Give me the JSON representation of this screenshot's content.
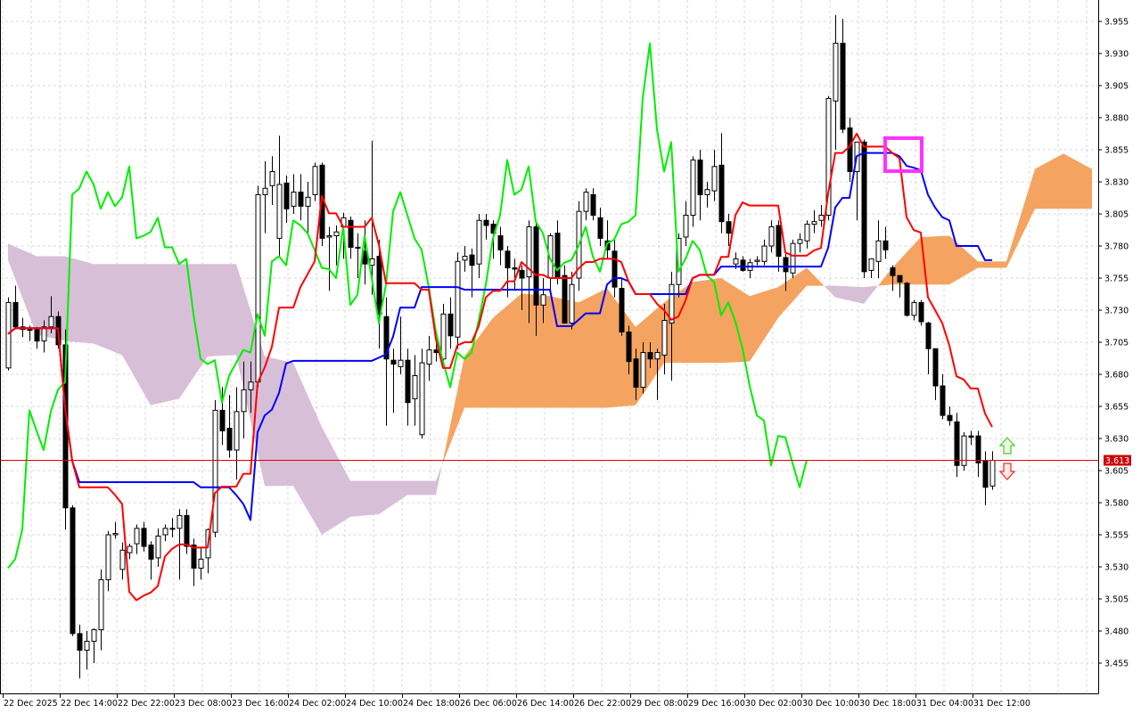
{
  "chart_data": {
    "type": "candlestick",
    "title": "",
    "xlabel": "",
    "ylabel": "",
    "ylim": [
      3.4314,
      3.9717
    ],
    "grid": true,
    "x_tick_labels": [
      "22 Dec 2025",
      "22 Dec 14:00",
      "22 Dec 22:00",
      "23 Dec 08:00",
      "23 Dec 16:00",
      "24 Dec 02:00",
      "24 Dec 10:00",
      "24 Dec 18:00",
      "26 Dec 06:00",
      "26 Dec 14:00",
      "26 Dec 22:00",
      "29 Dec 08:00",
      "29 Dec 16:00",
      "30 Dec 02:00",
      "30 Dec 10:00",
      "30 Dec 18:00",
      "31 Dec 04:00",
      "31 Dec 12:00"
    ],
    "y_ticks": [
      3.955,
      3.93,
      3.905,
      3.88,
      3.855,
      3.83,
      3.805,
      3.78,
      3.755,
      3.73,
      3.705,
      3.68,
      3.655,
      3.63,
      3.605,
      3.58,
      3.555,
      3.53,
      3.505,
      3.48,
      3.455
    ],
    "current_price": 3.613,
    "current_price_label": "3.613",
    "candles_ohlc": [
      [
        3.685,
        3.74,
        3.683,
        3.736
      ],
      [
        3.736,
        3.749,
        3.715,
        3.717
      ],
      [
        3.717,
        3.724,
        3.709,
        3.715
      ],
      [
        3.715,
        3.718,
        3.706,
        3.715
      ],
      [
        3.715,
        3.717,
        3.7,
        3.706
      ],
      [
        3.706,
        3.722,
        3.697,
        3.717
      ],
      [
        3.717,
        3.741,
        3.712,
        3.725
      ],
      [
        3.725,
        3.729,
        3.7,
        3.703
      ],
      [
        3.703,
        3.715,
        3.559,
        3.576
      ],
      [
        3.576,
        3.578,
        3.476,
        3.478
      ],
      [
        3.478,
        3.485,
        3.443,
        3.465
      ],
      [
        3.465,
        3.48,
        3.45,
        3.472
      ],
      [
        3.472,
        3.482,
        3.455,
        3.481
      ],
      [
        3.481,
        3.528,
        3.465,
        3.52
      ],
      [
        3.52,
        3.558,
        3.511,
        3.555
      ],
      [
        3.555,
        3.565,
        3.552,
        3.556
      ],
      [
        3.528,
        3.549,
        3.52,
        3.543
      ],
      [
        3.541,
        3.548,
        3.536,
        3.546
      ],
      [
        3.548,
        3.563,
        3.54,
        3.56
      ],
      [
        3.56,
        3.565,
        3.542,
        3.546
      ],
      [
        3.547,
        3.55,
        3.52,
        3.536
      ],
      [
        3.537,
        3.56,
        3.53,
        3.554
      ],
      [
        3.555,
        3.563,
        3.55,
        3.56
      ],
      [
        3.56,
        3.568,
        3.553,
        3.56
      ],
      [
        3.56,
        3.575,
        3.52,
        3.57
      ],
      [
        3.57,
        3.575,
        3.54,
        3.546
      ],
      [
        3.547,
        3.552,
        3.515,
        3.529
      ],
      [
        3.529,
        3.545,
        3.52,
        3.536
      ],
      [
        3.537,
        3.56,
        3.525,
        3.559
      ],
      [
        3.557,
        3.66,
        3.553,
        3.652
      ],
      [
        3.652,
        3.67,
        3.625,
        3.636
      ],
      [
        3.638,
        3.664,
        3.615,
        3.621
      ],
      [
        3.621,
        3.67,
        3.598,
        3.651
      ],
      [
        3.651,
        3.69,
        3.63,
        3.668
      ],
      [
        3.668,
        3.69,
        3.65,
        3.674
      ],
      [
        3.674,
        3.827,
        3.67,
        3.82
      ],
      [
        3.82,
        3.846,
        3.79,
        3.825
      ],
      [
        3.827,
        3.85,
        3.812,
        3.838
      ],
      [
        3.786,
        3.866,
        3.772,
        3.828
      ],
      [
        3.829,
        3.835,
        3.798,
        3.809
      ],
      [
        3.811,
        3.836,
        3.805,
        3.822
      ],
      [
        3.822,
        3.836,
        3.8,
        3.811
      ],
      [
        3.811,
        3.83,
        3.79,
        3.818
      ],
      [
        3.82,
        3.845,
        3.815,
        3.842
      ],
      [
        3.843,
        3.845,
        3.78,
        3.786
      ],
      [
        3.787,
        3.795,
        3.745,
        3.788
      ],
      [
        3.788,
        3.796,
        3.765,
        3.791
      ],
      [
        3.795,
        3.806,
        3.77,
        3.802
      ],
      [
        3.8,
        3.803,
        3.77,
        3.779
      ],
      [
        3.779,
        3.79,
        3.755,
        3.779
      ],
      [
        3.776,
        3.8,
        3.75,
        3.766
      ],
      [
        3.765,
        3.862,
        3.742,
        3.77
      ],
      [
        3.772,
        3.785,
        3.7,
        3.727
      ],
      [
        3.725,
        3.74,
        3.64,
        3.692
      ],
      [
        3.691,
        3.7,
        3.65,
        3.688
      ],
      [
        3.686,
        3.725,
        3.68,
        3.691
      ],
      [
        3.691,
        3.7,
        3.64,
        3.658
      ],
      [
        3.661,
        3.695,
        3.64,
        3.679
      ],
      [
        3.633,
        3.7,
        3.63,
        3.689
      ],
      [
        3.688,
        3.71,
        3.675,
        3.699
      ],
      [
        3.699,
        3.705,
        3.69,
        3.697
      ],
      [
        3.692,
        3.735,
        3.685,
        3.727
      ],
      [
        3.727,
        3.74,
        3.7,
        3.71
      ],
      [
        3.709,
        3.775,
        3.7,
        3.768
      ],
      [
        3.769,
        3.78,
        3.76,
        3.772
      ],
      [
        3.773,
        3.778,
        3.74,
        3.765
      ],
      [
        3.766,
        3.805,
        3.755,
        3.8
      ],
      [
        3.8,
        3.805,
        3.785,
        3.796
      ],
      [
        3.797,
        3.8,
        3.77,
        3.79
      ],
      [
        3.788,
        3.795,
        3.765,
        3.777
      ],
      [
        3.776,
        3.78,
        3.74,
        3.763
      ],
      [
        3.763,
        3.77,
        3.745,
        3.762
      ],
      [
        3.761,
        3.765,
        3.73,
        3.755
      ],
      [
        3.756,
        3.8,
        3.72,
        3.795
      ],
      [
        3.795,
        3.798,
        3.71,
        3.734
      ],
      [
        3.734,
        3.755,
        3.72,
        3.742
      ],
      [
        3.755,
        3.79,
        3.745,
        3.788
      ],
      [
        3.79,
        3.8,
        3.75,
        3.755
      ],
      [
        3.757,
        3.765,
        3.72,
        3.72
      ],
      [
        3.72,
        3.76,
        3.715,
        3.75
      ],
      [
        3.755,
        3.815,
        3.745,
        3.807
      ],
      [
        3.807,
        3.825,
        3.8,
        3.822
      ],
      [
        3.82,
        3.825,
        3.8,
        3.804
      ],
      [
        3.802,
        3.81,
        3.78,
        3.786
      ],
      [
        3.784,
        3.8,
        3.77,
        3.777
      ],
      [
        3.776,
        3.785,
        3.74,
        3.748
      ],
      [
        3.747,
        3.755,
        3.71,
        3.713
      ],
      [
        3.713,
        3.718,
        3.68,
        3.69
      ],
      [
        3.692,
        3.7,
        3.66,
        3.67
      ],
      [
        3.67,
        3.705,
        3.665,
        3.697
      ],
      [
        3.697,
        3.705,
        3.685,
        3.692
      ],
      [
        3.692,
        3.7,
        3.66,
        3.697
      ],
      [
        3.695,
        3.735,
        3.68,
        3.722
      ],
      [
        3.72,
        3.76,
        3.675,
        3.75
      ],
      [
        3.75,
        3.79,
        3.74,
        3.786
      ],
      [
        3.787,
        3.815,
        3.78,
        3.804
      ],
      [
        3.804,
        3.85,
        3.795,
        3.847
      ],
      [
        3.847,
        3.855,
        3.8,
        3.82
      ],
      [
        3.82,
        3.83,
        3.81,
        3.824
      ],
      [
        3.823,
        3.855,
        3.815,
        3.842
      ],
      [
        3.843,
        3.868,
        3.79,
        3.799
      ],
      [
        3.799,
        3.805,
        3.78,
        3.79
      ],
      [
        3.766,
        3.775,
        3.762,
        3.77
      ],
      [
        3.769,
        3.772,
        3.76,
        3.761
      ],
      [
        3.761,
        3.77,
        3.755,
        3.767
      ],
      [
        3.768,
        3.772,
        3.765,
        3.769
      ],
      [
        3.768,
        3.785,
        3.765,
        3.78
      ],
      [
        3.78,
        3.8,
        3.775,
        3.795
      ],
      [
        3.796,
        3.8,
        3.76,
        3.772
      ],
      [
        3.771,
        3.775,
        3.745,
        3.76
      ],
      [
        3.759,
        3.785,
        3.755,
        3.782
      ],
      [
        3.782,
        3.79,
        3.775,
        3.785
      ],
      [
        3.784,
        3.8,
        3.778,
        3.797
      ],
      [
        3.797,
        3.808,
        3.79,
        3.799
      ],
      [
        3.8,
        3.812,
        3.795,
        3.804
      ],
      [
        3.804,
        3.897,
        3.8,
        3.895
      ],
      [
        3.893,
        3.96,
        3.855,
        3.938
      ],
      [
        3.938,
        3.957,
        3.868,
        3.871
      ],
      [
        3.872,
        3.88,
        3.83,
        3.838
      ],
      [
        3.838,
        3.861,
        3.8,
        3.861
      ],
      [
        3.861,
        3.863,
        3.755,
        3.76
      ],
      [
        3.761,
        3.77,
        3.755,
        3.77
      ],
      [
        3.768,
        3.8,
        3.755,
        3.784
      ],
      [
        3.784,
        3.795,
        3.77,
        3.777
      ],
      [
        3.763,
        3.765,
        3.745,
        3.757
      ],
      [
        3.757,
        3.757,
        3.74,
        3.752
      ],
      [
        3.751,
        3.752,
        3.725,
        3.726
      ],
      [
        3.726,
        3.738,
        3.722,
        3.736
      ],
      [
        3.736,
        3.738,
        3.718,
        3.721
      ],
      [
        3.72,
        3.721,
        3.68,
        3.7
      ],
      [
        3.7,
        3.7,
        3.66,
        3.671
      ],
      [
        3.671,
        3.68,
        3.645,
        3.648
      ],
      [
        3.648,
        3.655,
        3.64,
        3.644
      ],
      [
        3.643,
        3.65,
        3.6,
        3.609
      ],
      [
        3.609,
        3.635,
        3.605,
        3.632
      ],
      [
        3.632,
        3.636,
        3.625,
        3.631
      ],
      [
        3.632,
        3.636,
        3.6,
        3.611
      ],
      [
        3.613,
        3.62,
        3.578,
        3.592
      ],
      [
        3.593,
        3.62,
        3.59,
        3.613
      ]
    ],
    "ichimoku": {
      "tenkan_period": 9,
      "kijun_period": 26,
      "chikou_shift": 26,
      "span_a": [
        3.769,
        3.711,
        3.706,
        3.704,
        3.695,
        3.656,
        3.661,
        3.694,
        3.695,
        3.593,
        3.593,
        3.555,
        3.569,
        3.571,
        3.586,
        3.586,
        3.694,
        3.724,
        3.743,
        3.741,
        3.736,
        3.747,
        3.717,
        3.736,
        3.752,
        3.755,
        3.741,
        3.748,
        3.763,
        3.74,
        3.735,
        3.763,
        3.787,
        3.788,
        3.768,
        3.768,
        3.84,
        3.852,
        3.84
      ],
      "span_b": [
        3.782,
        3.772,
        3.772,
        3.766,
        3.766,
        3.766,
        3.766,
        3.766,
        3.766,
        3.694,
        3.689,
        3.639,
        3.597,
        3.597,
        3.597,
        3.597,
        3.654,
        3.654,
        3.654,
        3.654,
        3.654,
        3.654,
        3.656,
        3.689,
        3.689,
        3.689,
        3.69,
        3.724,
        3.749,
        3.749,
        3.748,
        3.75,
        3.75,
        3.75,
        3.763,
        3.763,
        3.809,
        3.809,
        3.809
      ]
    },
    "colors": {
      "tenkan": "#ff0000",
      "kijun": "#0000ff",
      "chikou": "#00ee00",
      "cloud_bullish": "#f4a460",
      "cloud_bearish": "#d8bfd8",
      "bull_candle": "#ffffff",
      "bear_candle": "#000000",
      "price_line": "#e00000",
      "price_tag": "#cc0000",
      "highlight_box": "#ff33ff",
      "grid": "#d9d9d9"
    },
    "markers": {
      "highlight_box_icon": "rectangle-highlight",
      "up_arrow_icon": "arrow-up-outline",
      "down_arrow_icon": "arrow-down-outline"
    }
  }
}
